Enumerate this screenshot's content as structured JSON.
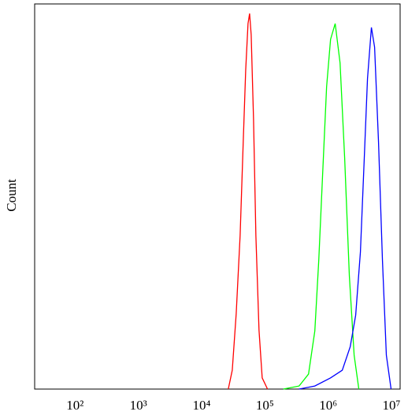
{
  "chart_data": {
    "type": "line",
    "y_label": "Count",
    "log_x": true,
    "xlim": [
      23,
      13700000
    ],
    "ylim": [
      0,
      100
    ],
    "xticks": [
      {
        "value": 100,
        "label": "10²"
      },
      {
        "value": 1000,
        "label": "10³"
      },
      {
        "value": 10000,
        "label": "10⁴"
      },
      {
        "value": 100000,
        "label": "10⁵"
      },
      {
        "value": 1000000,
        "label": "10⁶"
      },
      {
        "value": 10000000,
        "label": "10⁷"
      }
    ],
    "series": [
      {
        "color": "#ff0000",
        "x": [
          26400,
          30500,
          35200,
          40600,
          45500,
          49700,
          54100,
          57300,
          60700,
          66100,
          72000,
          80700,
          90600,
          110000
        ],
        "values": [
          0,
          4.9,
          19.6,
          39.9,
          64.4,
          82.8,
          94.9,
          97.5,
          92.0,
          70.1,
          39.9,
          15.3,
          2.9,
          0
        ]
      },
      {
        "color": "#00ff00",
        "x": [
          196000,
          347000,
          489000,
          615000,
          710000,
          818000,
          944000,
          1090000,
          1290000,
          1540000,
          1820000,
          2160000,
          2570000,
          3050000
        ],
        "values": [
          0,
          0.8,
          3.9,
          15.1,
          33.5,
          56.0,
          78.5,
          90.8,
          94.9,
          84.7,
          60.1,
          29.4,
          8.8,
          0
        ]
      },
      {
        "color": "#0000ff",
        "x": [
          347000,
          615000,
          1090000,
          1670000,
          2230000,
          2720000,
          3230000,
          3720000,
          4180000,
          4820000,
          5410000,
          6240000,
          7200000,
          8300000,
          9860000
        ],
        "values": [
          0,
          0.8,
          2.9,
          4.9,
          11.0,
          19.2,
          35.6,
          60.1,
          80.6,
          93.9,
          88.8,
          64.2,
          33.5,
          8.8,
          0
        ]
      }
    ]
  }
}
